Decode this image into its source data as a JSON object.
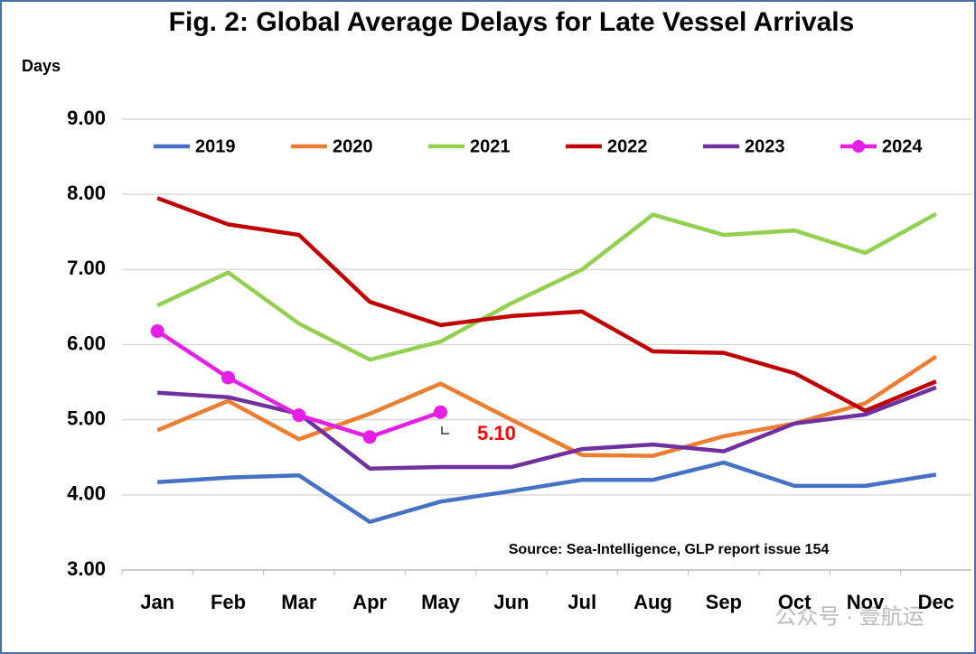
{
  "chart_data": {
    "type": "line",
    "title": "Fig. 2: Global Average Delays for Late Vessel Arrivals",
    "y_label": "Days",
    "categories": [
      "Jan",
      "Feb",
      "Mar",
      "Apr",
      "May",
      "Jun",
      "Jul",
      "Aug",
      "Sep",
      "Oct",
      "Nov",
      "Dec"
    ],
    "series": [
      {
        "name": "2019",
        "color": "#4472c4",
        "values": [
          4.17,
          4.23,
          4.26,
          3.64,
          3.91,
          4.05,
          4.2,
          4.2,
          4.43,
          4.12,
          4.12,
          4.27
        ]
      },
      {
        "name": "2020",
        "color": "#ed7d31",
        "values": [
          4.86,
          5.25,
          4.74,
          5.08,
          5.48,
          5.0,
          4.53,
          4.52,
          4.78,
          4.95,
          5.22,
          5.84
        ]
      },
      {
        "name": "2021",
        "color": "#92d050",
        "values": [
          6.52,
          6.96,
          6.28,
          5.8,
          6.04,
          6.55,
          7.0,
          7.73,
          7.46,
          7.52,
          7.22,
          7.74
        ]
      },
      {
        "name": "2022",
        "color": "#c00000",
        "values": [
          7.95,
          7.6,
          7.46,
          6.57,
          6.26,
          6.38,
          6.44,
          5.91,
          5.89,
          5.62,
          5.12,
          5.51
        ]
      },
      {
        "name": "2023",
        "color": "#7030a0",
        "values": [
          5.36,
          5.3,
          5.08,
          4.35,
          4.37,
          4.37,
          4.61,
          4.67,
          4.58,
          4.95,
          5.07,
          5.43
        ]
      },
      {
        "name": "2024",
        "color": "#e61fe6",
        "markers": true,
        "values": [
          6.18,
          5.56,
          5.06,
          4.77,
          5.1,
          null,
          null,
          null,
          null,
          null,
          null,
          null
        ]
      }
    ],
    "annotation": {
      "text": "5.10",
      "color": "#ff0000"
    },
    "source": "Source: Sea-Intelligence, GLP report issue 154",
    "watermark": "公众号 · 壹航运",
    "ylim": [
      3,
      9
    ],
    "yticks": [
      {
        "value": 3,
        "label": "3.00"
      },
      {
        "value": 4,
        "label": "4.00"
      },
      {
        "value": 5,
        "label": "5.00"
      },
      {
        "value": 6,
        "label": "6.00"
      },
      {
        "value": 7,
        "label": "7.00"
      },
      {
        "value": 8,
        "label": "8.00"
      },
      {
        "value": 9,
        "label": "9.00"
      }
    ],
    "grid": true,
    "legend": "top"
  }
}
